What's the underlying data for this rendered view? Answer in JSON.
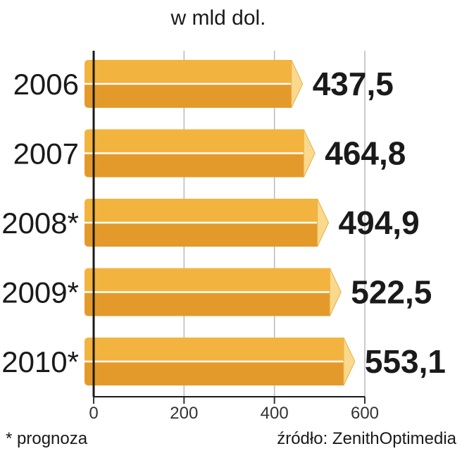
{
  "chart_data": {
    "type": "bar",
    "orientation": "horizontal",
    "unit_label": "w mld dol.",
    "categories": [
      "2006",
      "2007",
      "2008*",
      "2009*",
      "2010*"
    ],
    "values": [
      437.5,
      464.8,
      494.9,
      522.5,
      553.1
    ],
    "value_labels": [
      "437,5",
      "464,8",
      "494,9",
      "522,5",
      "553,1"
    ],
    "x_ticks": [
      "0",
      "200",
      "400",
      "600"
    ],
    "xlim": [
      0,
      600
    ],
    "grid": true,
    "bar_color_top": "#f3b33f",
    "bar_color_bottom": "#e49a2a",
    "bar_cap_color": "#f9d98c",
    "footnote": "* prognoza",
    "source": "źródło: ZenithOptimedia"
  }
}
